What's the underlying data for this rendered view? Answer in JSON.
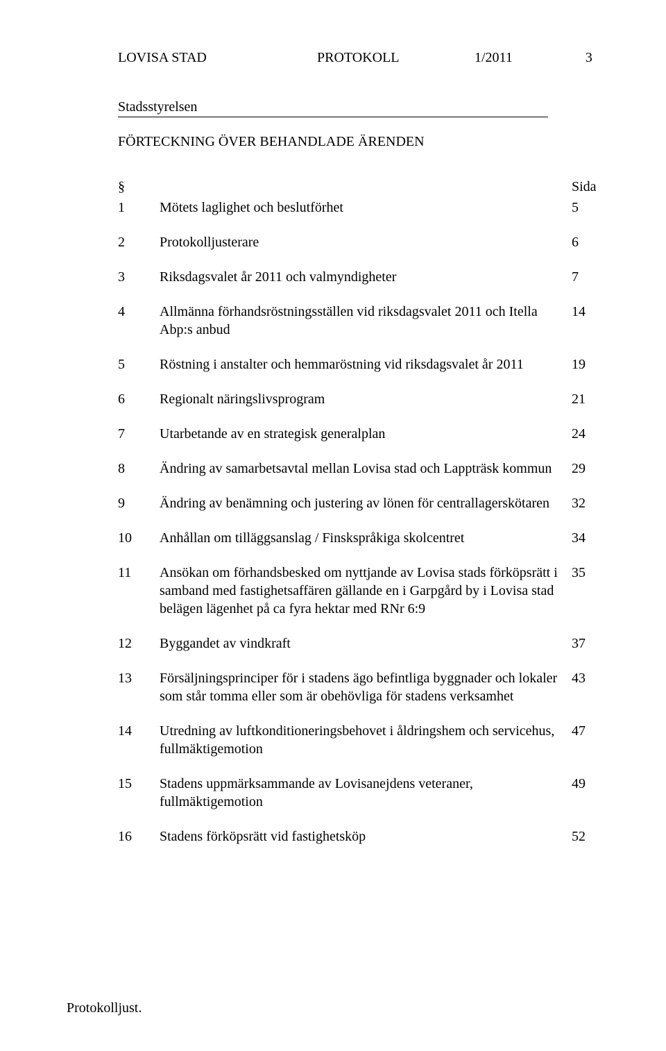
{
  "header": {
    "left": "LOVISA STAD",
    "center": "PROTOKOLL",
    "number": "1/2011",
    "page": "3"
  },
  "committee": "Stadsstyrelsen",
  "toc_title": "FÖRTECKNING ÖVER BEHANDLADE ÄRENDEN",
  "col_sym": "§",
  "col_page": "Sida",
  "items": [
    {
      "n": "1",
      "t": "Mötets laglighet och beslutförhet",
      "p": "5"
    },
    {
      "n": "2",
      "t": "Protokolljusterare",
      "p": "6"
    },
    {
      "n": "3",
      "t": "Riksdagsvalet år 2011 och valmyndigheter",
      "p": "7"
    },
    {
      "n": "4",
      "t": "Allmänna förhandsröstningsställen vid riksdagsvalet 2011 och Itella Abp:s anbud",
      "p": "14"
    },
    {
      "n": "5",
      "t": "Röstning i anstalter och hemmaröstning vid riksdagsvalet år 2011",
      "p": "19"
    },
    {
      "n": "6",
      "t": "Regionalt näringslivsprogram",
      "p": "21"
    },
    {
      "n": "7",
      "t": "Utarbetande av en strategisk generalplan",
      "p": "24"
    },
    {
      "n": "8",
      "t": "Ändring av samarbetsavtal mellan Lovisa stad och Lappträsk kommun",
      "p": "29"
    },
    {
      "n": "9",
      "t": "Ändring av benämning och justering av lönen för centrallagerskötaren",
      "p": "32"
    },
    {
      "n": "10",
      "t": "Anhållan om tilläggsanslag / Finskspråkiga skolcentret",
      "p": "34"
    },
    {
      "n": "11",
      "t": "Ansökan om förhandsbesked om nyttjande av Lovisa stads förköpsrätt i samband med fastighetsaffären gällande en i Garpgård by i Lovisa stad belägen lägenhet på ca fyra hektar med RNr 6:9",
      "p": "35"
    },
    {
      "n": "12",
      "t": "Byggandet av vindkraft",
      "p": "37"
    },
    {
      "n": "13",
      "t": "Försäljningsprinciper för i stadens ägo befintliga byggnader och lokaler som står tomma eller som är obehövliga för stadens verksamhet",
      "p": "43"
    },
    {
      "n": "14",
      "t": "Utredning av luftkonditioneringsbehovet i åldringshem och servicehus, fullmäktigemotion",
      "p": "47"
    },
    {
      "n": "15",
      "t": "Stadens uppmärksammande av Lovisanejdens veteraner, fullmäktigemotion",
      "p": "49"
    },
    {
      "n": "16",
      "t": "Stadens förköpsrätt vid fastighetsköp",
      "p": "52"
    }
  ],
  "footer": "Protokolljust."
}
